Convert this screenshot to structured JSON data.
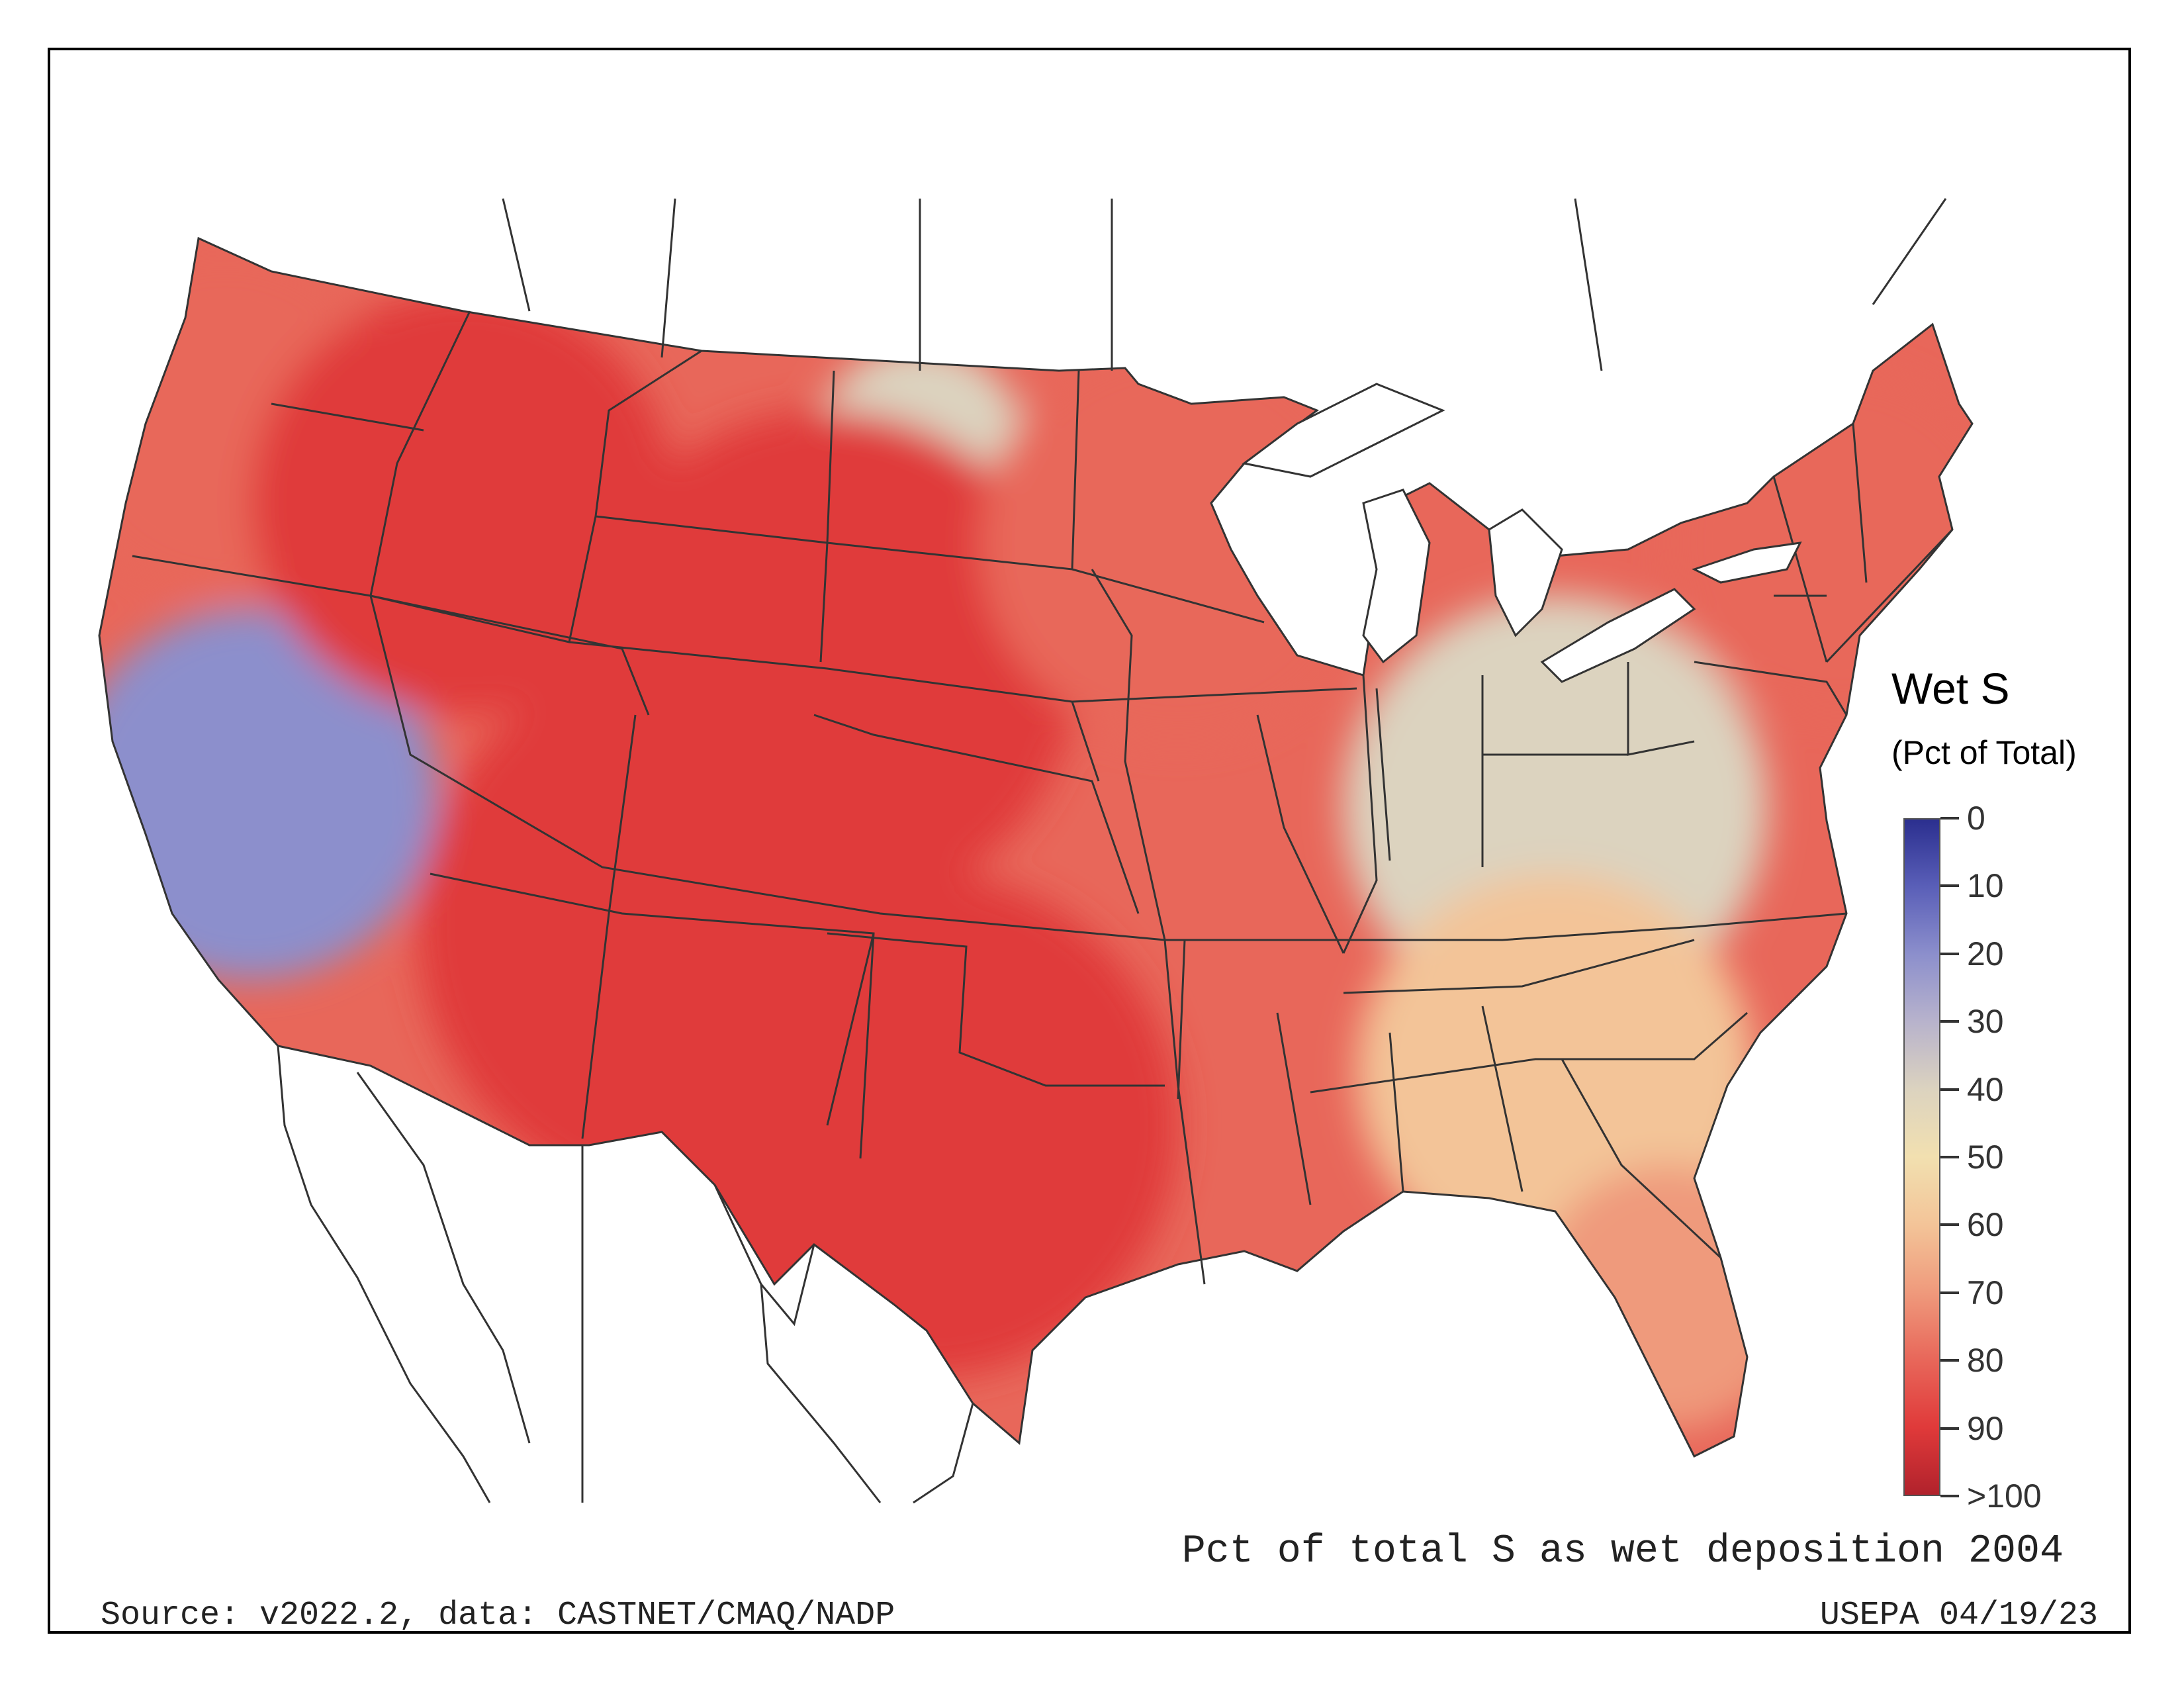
{
  "legend": {
    "title": "Wet S",
    "subtitle": "(Pct of Total)",
    "ticks": [
      "0",
      "10",
      "20",
      "30",
      "40",
      "50",
      "60",
      "70",
      "80",
      "90",
      ">100"
    ],
    "colors": [
      "#2b2f8f",
      "#5a5fb8",
      "#8c8fcc",
      "#b8b3cc",
      "#dcd3bf",
      "#f2e0b0",
      "#f3c498",
      "#ef9a7c",
      "#e8675a",
      "#e03a3a",
      "#b1222c"
    ]
  },
  "caption": "Pct of total S as wet deposition 2004",
  "source": "Source: v2022.2, data: CASTNET/CMAQ/NADP",
  "stamp": "USEPA 04/19/23",
  "map": {
    "regions": [
      {
        "name": "pacific-northwest",
        "value": 78
      },
      {
        "name": "california-nevada",
        "value": 22
      },
      {
        "name": "idaho-montana",
        "value": 88
      },
      {
        "name": "north-dakota-west",
        "value": 35
      },
      {
        "name": "great-plains",
        "value": 86
      },
      {
        "name": "southwest-rockies",
        "value": 90
      },
      {
        "name": "texas-oklahoma",
        "value": 88
      },
      {
        "name": "upper-midwest",
        "value": 80
      },
      {
        "name": "ohio-valley",
        "value": 38
      },
      {
        "name": "southeast",
        "value": 55
      },
      {
        "name": "northeast",
        "value": 78
      },
      {
        "name": "florida",
        "value": 65
      }
    ]
  }
}
